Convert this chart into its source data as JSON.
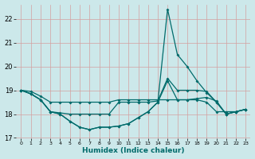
{
  "xlabel": "Humidex (Indice chaleur)",
  "bg_color": "#cce8ea",
  "grid_color": "#d4a0a0",
  "line_color": "#006b6b",
  "xlim": [
    -0.5,
    23.5
  ],
  "ylim": [
    17.0,
    22.6
  ],
  "yticks": [
    17,
    18,
    19,
    20,
    21,
    22
  ],
  "xticks": [
    0,
    1,
    2,
    3,
    4,
    5,
    6,
    7,
    8,
    9,
    10,
    11,
    12,
    13,
    14,
    15,
    16,
    17,
    18,
    19,
    20,
    21,
    22,
    23
  ],
  "series": [
    [
      19.0,
      18.85,
      18.6,
      18.1,
      18.0,
      17.7,
      17.45,
      17.35,
      17.45,
      17.45,
      17.5,
      17.6,
      17.85,
      18.1,
      18.5,
      19.4,
      18.6,
      18.6,
      18.6,
      18.5,
      18.1,
      18.1,
      18.1,
      18.2
    ],
    [
      19.0,
      18.95,
      18.75,
      18.5,
      18.5,
      18.5,
      18.5,
      18.5,
      18.5,
      18.5,
      18.6,
      18.6,
      18.6,
      18.6,
      18.6,
      18.6,
      18.6,
      18.6,
      18.65,
      18.7,
      18.55,
      18.0,
      18.1,
      18.2
    ],
    [
      19.0,
      18.85,
      18.6,
      18.1,
      18.05,
      18.0,
      18.0,
      18.0,
      18.0,
      18.0,
      18.5,
      18.5,
      18.5,
      18.5,
      18.55,
      19.5,
      19.0,
      19.0,
      19.0,
      18.95,
      18.5,
      18.0,
      18.1,
      18.2
    ],
    [
      19.0,
      18.85,
      18.6,
      18.1,
      18.0,
      17.7,
      17.45,
      17.35,
      17.45,
      17.45,
      17.5,
      17.6,
      17.85,
      18.1,
      18.5,
      22.4,
      20.5,
      20.0,
      19.4,
      18.9,
      18.5,
      18.0,
      18.1,
      18.2
    ]
  ]
}
